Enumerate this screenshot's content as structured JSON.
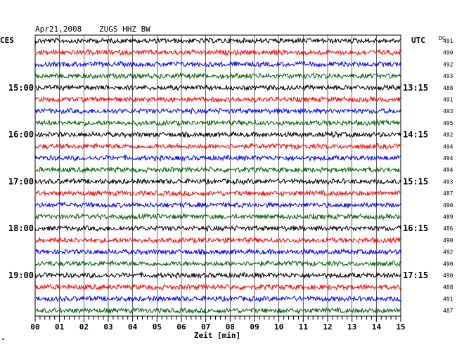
{
  "header": {
    "date": "Apr21,2008",
    "station": "ZUGS HHZ BW",
    "left_zone": "CES",
    "right_zone": "UTC",
    "dc_label": "DC"
  },
  "corner_mark": "*",
  "chart_data": {
    "type": "line",
    "subtype": "helicorder seismogram",
    "xlabel": "Zeit [min]",
    "xlim": [
      0,
      15
    ],
    "x_ticks": [
      "00",
      "01",
      "02",
      "03",
      "04",
      "05",
      "06",
      "07",
      "08",
      "09",
      "10",
      "11",
      "12",
      "13",
      "14",
      "15"
    ],
    "grid": "vertical at each minute",
    "trace_colors": [
      "#000000",
      "#ff0000",
      "#0000ff",
      "#006400"
    ],
    "traces_per_hour": 4,
    "left_time_labels": [
      "15:00",
      "16:00",
      "17:00",
      "18:00",
      "19:00"
    ],
    "right_time_labels": [
      "13:15",
      "14:15",
      "15:15",
      "16:15",
      "17:15"
    ],
    "time_label_rows": [
      4,
      8,
      12,
      16,
      20
    ],
    "dc_values": [
      491,
      490,
      492,
      493,
      488,
      491,
      493,
      495,
      492,
      494,
      494,
      494,
      493,
      487,
      490,
      489,
      486,
      490,
      492,
      490,
      490,
      488,
      491,
      487
    ]
  }
}
